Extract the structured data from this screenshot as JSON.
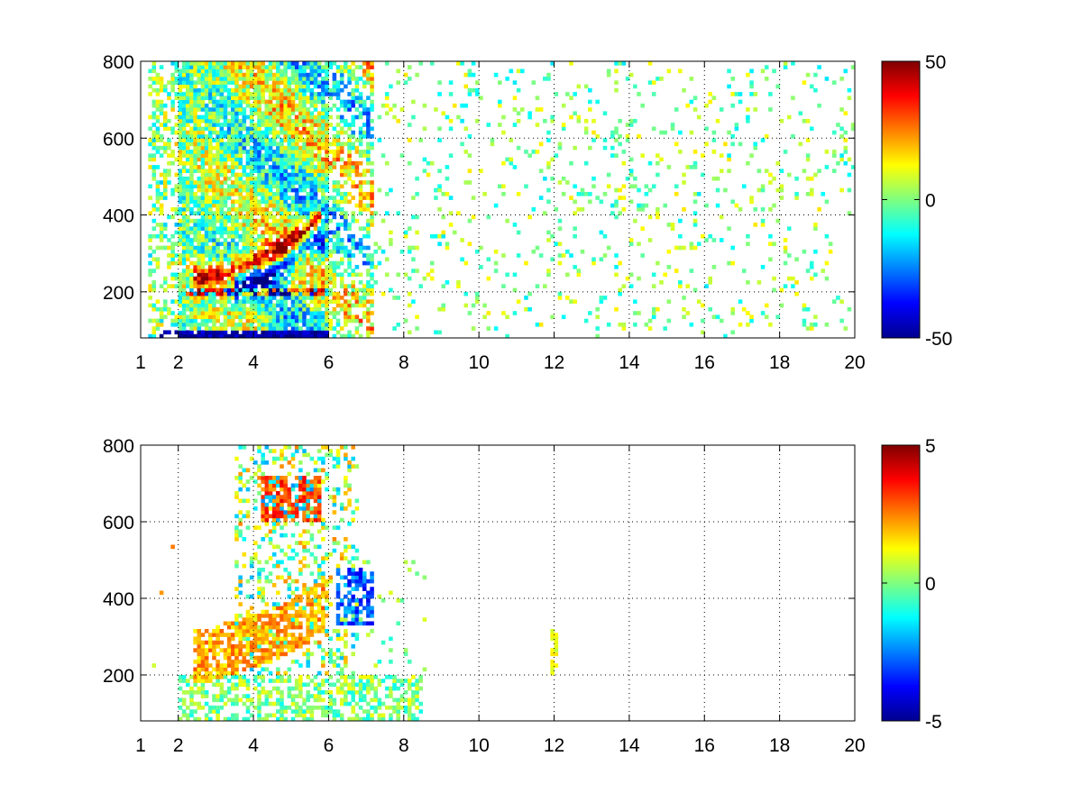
{
  "chart_data": [
    {
      "type": "heatmap",
      "title": "",
      "xlabel": "",
      "ylabel": "",
      "xlim": [
        1,
        20
      ],
      "ylim": [
        80,
        800
      ],
      "x_ticks": [
        1,
        2,
        4,
        6,
        8,
        10,
        12,
        14,
        16,
        18,
        20
      ],
      "x_tick_labels": [
        "1",
        "2",
        "4",
        "6",
        "8",
        "10",
        "12",
        "14",
        "16",
        "18",
        "20"
      ],
      "y_ticks": [
        200,
        400,
        600,
        800
      ],
      "y_tick_labels": [
        "200",
        "400",
        "600",
        "800"
      ],
      "grid": true,
      "grid_style": "dotted",
      "colormap": "jet",
      "color_range": [
        -50,
        50
      ],
      "colorbar_ticks": [
        -50,
        0,
        50
      ],
      "colorbar_tick_labels": [
        "-50",
        "0",
        "50"
      ],
      "colorbar_position": "right",
      "missing_values": "white",
      "regions": [
        {
          "description": "dense band of values",
          "x_range": [
            1.2,
            7.2
          ],
          "y_range": [
            80,
            800
          ],
          "typical_range": [
            -50,
            50
          ]
        },
        {
          "description": "strong positive ridge",
          "x_points": [
            3.0,
            3.8,
            4.6,
            5.2,
            5.8
          ],
          "y_points": [
            240,
            270,
            300,
            340,
            400
          ],
          "value": 45
        },
        {
          "description": "strong negative band below ridge",
          "x_points": [
            3.5,
            4.5,
            5.5
          ],
          "y_points": [
            210,
            250,
            330
          ],
          "value": -40
        },
        {
          "description": "bottom row saturated",
          "x_range": [
            1.5,
            6.0
          ],
          "y_range": [
            80,
            100
          ],
          "value": -45
        },
        {
          "description": "sparse near-zero values",
          "x_range": [
            7.2,
            20.0
          ],
          "y_range": [
            80,
            800
          ],
          "typical_range": [
            -15,
            15
          ]
        }
      ]
    },
    {
      "type": "heatmap",
      "title": "",
      "xlabel": "",
      "ylabel": "",
      "xlim": [
        1,
        20
      ],
      "ylim": [
        80,
        800
      ],
      "x_ticks": [
        1,
        2,
        4,
        6,
        8,
        10,
        12,
        14,
        16,
        18,
        20
      ],
      "x_tick_labels": [
        "1",
        "2",
        "4",
        "6",
        "8",
        "10",
        "12",
        "14",
        "16",
        "18",
        "20"
      ],
      "y_ticks": [
        200,
        400,
        600,
        800
      ],
      "y_tick_labels": [
        "200",
        "400",
        "600",
        "800"
      ],
      "grid": true,
      "grid_style": "dotted",
      "colormap": "jet",
      "color_range": [
        -5,
        5
      ],
      "colorbar_ticks": [
        -5,
        0,
        5
      ],
      "colorbar_tick_labels": [
        "-5",
        "0",
        "5"
      ],
      "colorbar_position": "right",
      "missing_values": "white",
      "regions": [
        {
          "description": "positive ridge",
          "x_points": [
            2.8,
            3.6,
            4.4,
            5.2,
            5.9
          ],
          "y_points": [
            250,
            280,
            300,
            340,
            380
          ],
          "value": 3
        },
        {
          "description": "positive cluster at top",
          "x_range": [
            4.2,
            5.8
          ],
          "y_range": [
            600,
            720
          ],
          "value": 4
        },
        {
          "description": "negative patch",
          "x_range": [
            6.2,
            7.2
          ],
          "y_range": [
            330,
            480
          ],
          "value": -4
        },
        {
          "description": "near-zero low band",
          "x_range": [
            2.0,
            8.5
          ],
          "y_range": [
            80,
            200
          ],
          "value": 0
        },
        {
          "description": "isolated values near 12",
          "x_range": [
            11.9,
            12.1
          ],
          "y_range": [
            200,
            340
          ],
          "value": 1
        }
      ]
    }
  ]
}
